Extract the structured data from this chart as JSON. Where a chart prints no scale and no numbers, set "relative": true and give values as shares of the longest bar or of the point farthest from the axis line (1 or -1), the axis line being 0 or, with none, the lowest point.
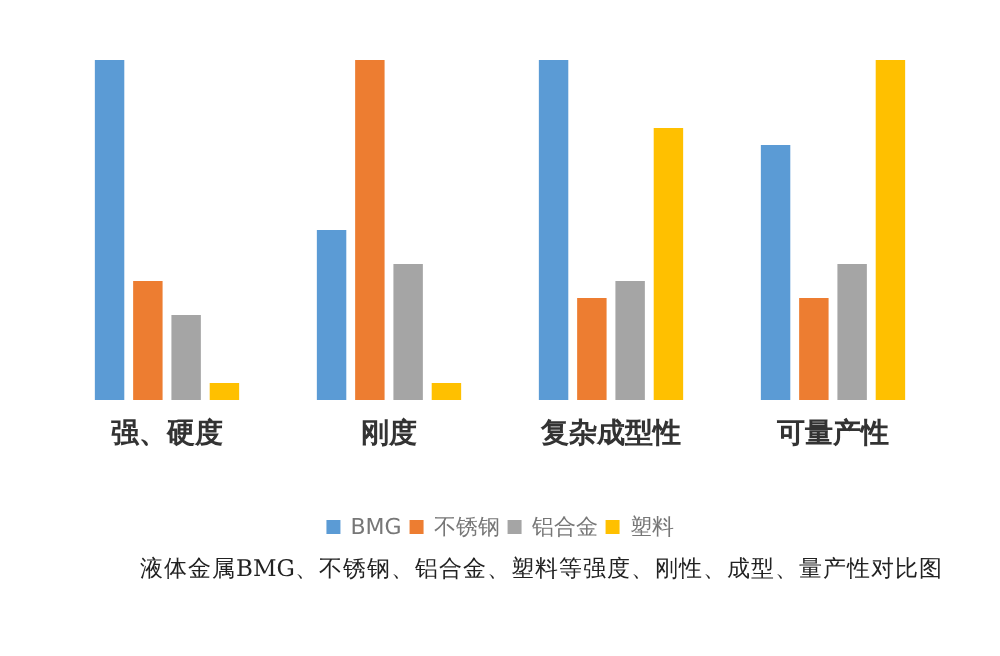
{
  "chart_data": {
    "type": "bar",
    "relative": true,
    "categories": [
      "强、硬度",
      "刚度",
      "复杂成型性",
      "可量产性"
    ],
    "series": [
      {
        "name": "BMG",
        "color": "#5b9bd5",
        "values": [
          1,
          0.5,
          1,
          0.75
        ]
      },
      {
        "name": "不锈钢",
        "color": "#ed7d31",
        "values": [
          0.35,
          1,
          0.3,
          0.3
        ]
      },
      {
        "name": "铝合金",
        "color": "#a5a5a5",
        "values": [
          0.25,
          0.4,
          0.35,
          0.4
        ]
      },
      {
        "name": "塑料",
        "color": "#ffc000",
        "values": [
          0.05,
          0.05,
          0.8,
          1
        ]
      }
    ],
    "legend": "bottom",
    "annotations": [
      "液体金属BMG、不锈钢、铝合金、塑料等强度、刚性、成型、量产性对比图"
    ]
  }
}
